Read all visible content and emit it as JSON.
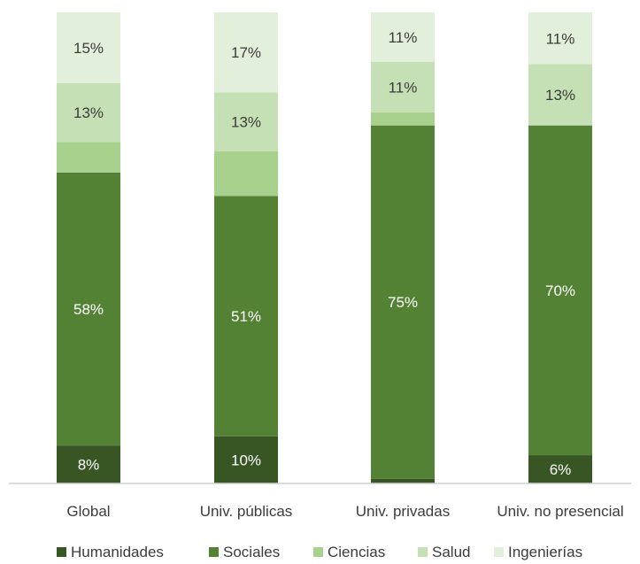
{
  "chart_data": {
    "type": "bar",
    "stacked": true,
    "normalized": true,
    "categories": [
      "Global",
      "Univ. públicas",
      "Univ. privadas",
      "Univ. no presencial"
    ],
    "series": [
      {
        "name": "Humanidades",
        "color": "#375623",
        "values": [
          8,
          10,
          1,
          6
        ],
        "labels": [
          "8%",
          "10%",
          "",
          "6%"
        ],
        "label_color": "#ffffff"
      },
      {
        "name": "Sociales",
        "color": "#548235",
        "values": [
          58,
          51,
          75,
          70
        ],
        "labels": [
          "58%",
          "51%",
          "75%",
          "70%"
        ],
        "label_color": "#ffffff"
      },
      {
        "name": "Ciencias",
        "color": "#a9d18e",
        "values": [
          6.5,
          9.5,
          2.8,
          0
        ],
        "labels": [
          "",
          "",
          "",
          ""
        ],
        "label_color": "#3b3b3b"
      },
      {
        "name": "Salud",
        "color": "#c5e0b4",
        "values": [
          12.5,
          12.5,
          10.7,
          13
        ],
        "labels": [
          "13%",
          "13%",
          "11%",
          "13%"
        ],
        "label_color": "#3b3b3b"
      },
      {
        "name": "Ingenierías",
        "color": "#e2efda",
        "values": [
          15,
          17,
          10.5,
          11
        ],
        "labels": [
          "15%",
          "17%",
          "11%",
          "11%"
        ],
        "label_color": "#3b3b3b"
      }
    ],
    "ylim": [
      0,
      100
    ],
    "legend_position": "bottom",
    "grid": false
  }
}
